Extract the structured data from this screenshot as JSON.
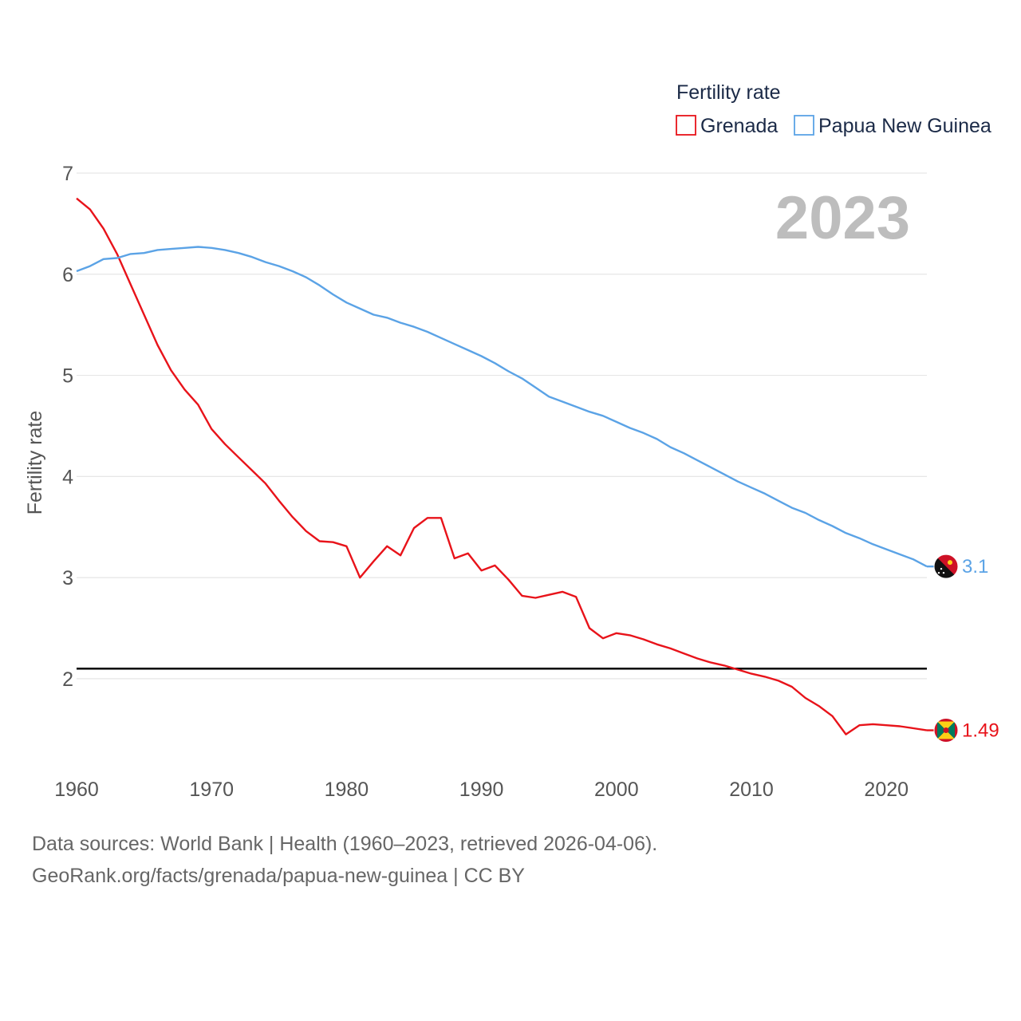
{
  "chart_data": {
    "type": "line",
    "title": "",
    "legend_title": "Fertility rate",
    "ylabel": "Fertility rate",
    "xlabel": "",
    "highlight_year": "2023",
    "xlim": [
      1960,
      2023
    ],
    "ylim": [
      1.1,
      7
    ],
    "x_ticks": [
      "1960",
      "1970",
      "1980",
      "1990",
      "2000",
      "2010",
      "2020"
    ],
    "y_ticks": [
      "2",
      "3",
      "4",
      "5",
      "6",
      "7"
    ],
    "reference_line": 2.1,
    "legend_position": "top-right",
    "x": [
      1960,
      1961,
      1962,
      1963,
      1964,
      1965,
      1966,
      1967,
      1968,
      1969,
      1970,
      1971,
      1972,
      1973,
      1974,
      1975,
      1976,
      1977,
      1978,
      1979,
      1980,
      1981,
      1982,
      1983,
      1984,
      1985,
      1986,
      1987,
      1988,
      1989,
      1990,
      1991,
      1992,
      1993,
      1994,
      1995,
      1996,
      1997,
      1998,
      1999,
      2000,
      2001,
      2002,
      2003,
      2004,
      2005,
      2006,
      2007,
      2008,
      2009,
      2010,
      2011,
      2012,
      2013,
      2014,
      2015,
      2016,
      2017,
      2018,
      2019,
      2020,
      2021,
      2022,
      2023
    ],
    "series": [
      {
        "name": "Grenada",
        "color": "#e8131a",
        "end_label": "1.49",
        "flag_icon": "grenada-flag-icon",
        "values": [
          6.75,
          6.64,
          6.45,
          6.2,
          5.9,
          5.6,
          5.3,
          5.05,
          4.86,
          4.71,
          4.47,
          4.32,
          4.19,
          4.06,
          3.93,
          3.76,
          3.6,
          3.46,
          3.36,
          3.35,
          3.31,
          3.0,
          3.16,
          3.31,
          3.22,
          3.49,
          3.59,
          3.59,
          3.19,
          3.24,
          3.07,
          3.12,
          2.98,
          2.82,
          2.8,
          2.83,
          2.86,
          2.81,
          2.5,
          2.4,
          2.45,
          2.43,
          2.39,
          2.34,
          2.3,
          2.25,
          2.2,
          2.16,
          2.13,
          2.09,
          2.05,
          2.02,
          1.98,
          1.92,
          1.81,
          1.73,
          1.63,
          1.45,
          1.54,
          1.55,
          1.54,
          1.53,
          1.51,
          1.49
        ]
      },
      {
        "name": "Papua New Guinea",
        "color": "#5ba3e6",
        "end_label": "3.1",
        "flag_icon": "papua-new-guinea-flag-icon",
        "values": [
          6.03,
          6.08,
          6.15,
          6.16,
          6.2,
          6.21,
          6.24,
          6.25,
          6.26,
          6.27,
          6.26,
          6.24,
          6.21,
          6.17,
          6.12,
          6.08,
          6.03,
          5.97,
          5.89,
          5.8,
          5.72,
          5.66,
          5.6,
          5.57,
          5.52,
          5.48,
          5.43,
          5.37,
          5.31,
          5.25,
          5.19,
          5.12,
          5.04,
          4.97,
          4.88,
          4.79,
          4.74,
          4.69,
          4.64,
          4.6,
          4.54,
          4.48,
          4.43,
          4.37,
          4.29,
          4.23,
          4.16,
          4.09,
          4.02,
          3.95,
          3.89,
          3.83,
          3.76,
          3.69,
          3.64,
          3.57,
          3.51,
          3.44,
          3.39,
          3.33,
          3.28,
          3.23,
          3.18,
          3.11
        ]
      }
    ]
  },
  "footer": {
    "sources_line": "Data sources: World Bank | Health (1960–2023, retrieved 2026-04-06).",
    "attribution_line": "GeoRank.org/facts/grenada/papua-new-guinea | CC BY"
  }
}
